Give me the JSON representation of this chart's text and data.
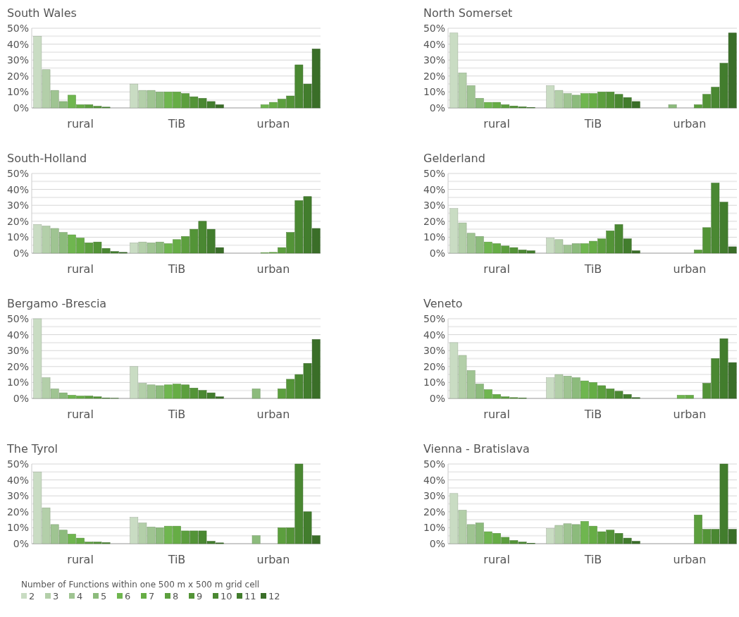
{
  "chart_data": [
    {
      "type": "bar",
      "title": "South Wales",
      "categories": [
        "rural",
        "TiB",
        "urban"
      ],
      "ylim": [
        0,
        50
      ],
      "yticks": [
        {
          "value": 0,
          "label": "0%"
        },
        {
          "value": 5,
          "label": null
        },
        {
          "value": 10,
          "label": "10%"
        },
        {
          "value": 15,
          "label": null
        },
        {
          "value": 20,
          "label": "20%"
        },
        {
          "value": 25,
          "label": null
        },
        {
          "value": 30,
          "label": "30%"
        },
        {
          "value": 35,
          "label": null
        },
        {
          "value": 40,
          "label": "40%"
        },
        {
          "value": 45,
          "label": null
        },
        {
          "value": 50,
          "label": "50%"
        }
      ],
      "grid": true,
      "series": [
        {
          "color": "#c9dcc3",
          "values": [
            45,
            15,
            0
          ]
        },
        {
          "color": "#b3cfa9",
          "values": [
            24,
            11,
            0
          ]
        },
        {
          "color": "#9fc492",
          "values": [
            11,
            11,
            0
          ]
        },
        {
          "color": "#8cbb7c",
          "values": [
            4,
            10,
            0
          ]
        },
        {
          "color": "#6fb64f",
          "values": [
            8,
            10,
            2
          ]
        },
        {
          "color": "#66ad45",
          "values": [
            2,
            10,
            3.5
          ]
        },
        {
          "color": "#5c9f3e",
          "values": [
            2,
            9,
            5.5
          ]
        },
        {
          "color": "#539437",
          "values": [
            1,
            7,
            7.5
          ]
        },
        {
          "color": "#4a8832",
          "values": [
            0.5,
            6,
            27
          ]
        },
        {
          "color": "#427d2d",
          "values": [
            0,
            4,
            15
          ]
        },
        {
          "color": "#3a6e28",
          "values": [
            0,
            2,
            37
          ]
        }
      ]
    },
    {
      "type": "bar",
      "title": "North Somerset",
      "categories": [
        "rural",
        "TiB",
        "urban"
      ],
      "ylim": [
        0,
        50
      ],
      "yticks": [
        {
          "value": 0,
          "label": "0%"
        },
        {
          "value": 5,
          "label": null
        },
        {
          "value": 10,
          "label": "10%"
        },
        {
          "value": 15,
          "label": null
        },
        {
          "value": 20,
          "label": "20%"
        },
        {
          "value": 25,
          "label": null
        },
        {
          "value": 30,
          "label": "30%"
        },
        {
          "value": 35,
          "label": null
        },
        {
          "value": 40,
          "label": "40%"
        },
        {
          "value": 45,
          "label": null
        },
        {
          "value": 50,
          "label": "50%"
        }
      ],
      "grid": true,
      "series": [
        {
          "color": "#c9dcc3",
          "values": [
            47,
            14,
            0
          ]
        },
        {
          "color": "#b3cfa9",
          "values": [
            22,
            11,
            0
          ]
        },
        {
          "color": "#9fc492",
          "values": [
            14,
            9,
            0
          ]
        },
        {
          "color": "#8cbb7c",
          "values": [
            6,
            8,
            2
          ]
        },
        {
          "color": "#6fb64f",
          "values": [
            3.5,
            9,
            0
          ]
        },
        {
          "color": "#66ad45",
          "values": [
            3.5,
            9,
            0
          ]
        },
        {
          "color": "#5c9f3e",
          "values": [
            2,
            10,
            2
          ]
        },
        {
          "color": "#539437",
          "values": [
            1.2,
            10,
            8.5
          ]
        },
        {
          "color": "#4a8832",
          "values": [
            0.7,
            8.5,
            13
          ]
        },
        {
          "color": "#427d2d",
          "values": [
            0.2,
            6.5,
            28
          ]
        },
        {
          "color": "#3a6e28",
          "values": [
            0,
            4,
            47
          ]
        }
      ]
    },
    {
      "type": "bar",
      "title": "South-Holland",
      "categories": [
        "rural",
        "TiB",
        "urban"
      ],
      "ylim": [
        0,
        50
      ],
      "yticks": [
        {
          "value": 0,
          "label": "0%"
        },
        {
          "value": 5,
          "label": null
        },
        {
          "value": 10,
          "label": "10%"
        },
        {
          "value": 15,
          "label": null
        },
        {
          "value": 20,
          "label": "20%"
        },
        {
          "value": 25,
          "label": null
        },
        {
          "value": 30,
          "label": "30%"
        },
        {
          "value": 35,
          "label": null
        },
        {
          "value": 40,
          "label": "40%"
        },
        {
          "value": 45,
          "label": null
        },
        {
          "value": 50,
          "label": "50%"
        }
      ],
      "grid": true,
      "series": [
        {
          "color": "#c9dcc3",
          "values": [
            18,
            6.5,
            null
          ]
        },
        {
          "color": "#b3cfa9",
          "values": [
            17,
            7,
            null
          ]
        },
        {
          "color": "#9fc492",
          "values": [
            15.5,
            6.5,
            null
          ]
        },
        {
          "color": "#8cbb7c",
          "values": [
            13,
            7,
            null
          ]
        },
        {
          "color": "#6fb64f",
          "values": [
            11.5,
            6,
            0.3
          ]
        },
        {
          "color": "#66ad45",
          "values": [
            9.5,
            8.5,
            0.5
          ]
        },
        {
          "color": "#5c9f3e",
          "values": [
            6.5,
            10.5,
            3.5
          ]
        },
        {
          "color": "#539437",
          "values": [
            7,
            15,
            13
          ]
        },
        {
          "color": "#4a8832",
          "values": [
            3,
            20,
            33
          ]
        },
        {
          "color": "#427d2d",
          "values": [
            1,
            15,
            35.5
          ]
        },
        {
          "color": "#3a6e28",
          "values": [
            0.5,
            3.5,
            15.5
          ]
        }
      ]
    },
    {
      "type": "bar",
      "title": "Gelderland",
      "categories": [
        "rural",
        "TiB",
        "urban"
      ],
      "ylim": [
        0,
        50
      ],
      "yticks": [
        {
          "value": 0,
          "label": "0%"
        },
        {
          "value": 5,
          "label": null
        },
        {
          "value": 10,
          "label": "10%"
        },
        {
          "value": 15,
          "label": null
        },
        {
          "value": 20,
          "label": "20%"
        },
        {
          "value": 25,
          "label": null
        },
        {
          "value": 30,
          "label": "30%"
        },
        {
          "value": 35,
          "label": null
        },
        {
          "value": 40,
          "label": "40%"
        },
        {
          "value": 45,
          "label": null
        },
        {
          "value": 50,
          "label": "50%"
        }
      ],
      "grid": true,
      "series": [
        {
          "color": "#c9dcc3",
          "values": [
            28,
            9.5,
            0
          ]
        },
        {
          "color": "#b3cfa9",
          "values": [
            19,
            8.5,
            0
          ]
        },
        {
          "color": "#9fc492",
          "values": [
            12.5,
            5,
            0
          ]
        },
        {
          "color": "#8cbb7c",
          "values": [
            10.5,
            6,
            0
          ]
        },
        {
          "color": "#6fb64f",
          "values": [
            7,
            6,
            0
          ]
        },
        {
          "color": "#66ad45",
          "values": [
            6,
            7.5,
            0
          ]
        },
        {
          "color": "#5c9f3e",
          "values": [
            4.5,
            9,
            2
          ]
        },
        {
          "color": "#539437",
          "values": [
            3.5,
            14,
            16
          ]
        },
        {
          "color": "#4a8832",
          "values": [
            2,
            18,
            44
          ]
        },
        {
          "color": "#427d2d",
          "values": [
            1.5,
            9,
            32
          ]
        },
        {
          "color": "#3a6e28",
          "values": [
            0,
            1.5,
            4
          ]
        }
      ]
    },
    {
      "type": "bar",
      "title": "Bergamo -Brescia",
      "categories": [
        "rural",
        "TiB",
        "urban"
      ],
      "ylim": [
        0,
        50
      ],
      "yticks": [
        {
          "value": 0,
          "label": "0%"
        },
        {
          "value": 5,
          "label": null
        },
        {
          "value": 10,
          "label": "10%"
        },
        {
          "value": 15,
          "label": null
        },
        {
          "value": 20,
          "label": "20%"
        },
        {
          "value": 25,
          "label": null
        },
        {
          "value": 30,
          "label": "30%"
        },
        {
          "value": 35,
          "label": null
        },
        {
          "value": 40,
          "label": "40%"
        },
        {
          "value": 45,
          "label": null
        },
        {
          "value": 50,
          "label": "50%"
        }
      ],
      "grid": true,
      "series": [
        {
          "color": "#c9dcc3",
          "values": [
            50,
            20,
            0
          ]
        },
        {
          "color": "#b3cfa9",
          "values": [
            13,
            9.5,
            0
          ]
        },
        {
          "color": "#9fc492",
          "values": [
            6,
            8.5,
            0
          ]
        },
        {
          "color": "#8cbb7c",
          "values": [
            3.5,
            8,
            6
          ]
        },
        {
          "color": "#6fb64f",
          "values": [
            2,
            8.5,
            0
          ]
        },
        {
          "color": "#66ad45",
          "values": [
            1.5,
            9,
            0
          ]
        },
        {
          "color": "#5c9f3e",
          "values": [
            1.5,
            8.5,
            6
          ]
        },
        {
          "color": "#539437",
          "values": [
            1,
            6.5,
            12
          ]
        },
        {
          "color": "#4a8832",
          "values": [
            0.3,
            5,
            15
          ]
        },
        {
          "color": "#427d2d",
          "values": [
            0.1,
            3.5,
            22
          ]
        },
        {
          "color": "#3a6e28",
          "values": [
            0,
            1,
            37
          ]
        }
      ]
    },
    {
      "type": "bar",
      "title": "Veneto",
      "categories": [
        "rural",
        "TiB",
        "urban"
      ],
      "ylim": [
        0,
        50
      ],
      "yticks": [
        {
          "value": 0,
          "label": "0%"
        },
        {
          "value": 5,
          "label": null
        },
        {
          "value": 10,
          "label": "10%"
        },
        {
          "value": 15,
          "label": null
        },
        {
          "value": 20,
          "label": "20%"
        },
        {
          "value": 25,
          "label": null
        },
        {
          "value": 30,
          "label": "30%"
        },
        {
          "value": 35,
          "label": null
        },
        {
          "value": 40,
          "label": "40%"
        },
        {
          "value": 45,
          "label": null
        },
        {
          "value": 50,
          "label": "50%"
        }
      ],
      "grid": true,
      "series": [
        {
          "color": "#c9dcc3",
          "values": [
            35,
            13,
            0
          ]
        },
        {
          "color": "#b3cfa9",
          "values": [
            27,
            15,
            0
          ]
        },
        {
          "color": "#9fc492",
          "values": [
            17.5,
            14,
            0
          ]
        },
        {
          "color": "#8cbb7c",
          "values": [
            9,
            13,
            0
          ]
        },
        {
          "color": "#6fb64f",
          "values": [
            5.5,
            11,
            2
          ]
        },
        {
          "color": "#66ad45",
          "values": [
            2.5,
            10,
            2
          ]
        },
        {
          "color": "#5c9f3e",
          "values": [
            1,
            8,
            0
          ]
        },
        {
          "color": "#539437",
          "values": [
            0.5,
            6,
            9.5
          ]
        },
        {
          "color": "#4a8832",
          "values": [
            0.3,
            4.5,
            25
          ]
        },
        {
          "color": "#427d2d",
          "values": [
            0,
            2.5,
            37.5
          ]
        },
        {
          "color": "#3a6e28",
          "values": [
            0,
            0.5,
            22.5
          ]
        }
      ]
    },
    {
      "type": "bar",
      "title": "The Tyrol",
      "categories": [
        "rural",
        "TiB",
        "urban"
      ],
      "ylim": [
        0,
        50
      ],
      "yticks": [
        {
          "value": 0,
          "label": "0%"
        },
        {
          "value": 5,
          "label": null
        },
        {
          "value": 10,
          "label": "10%"
        },
        {
          "value": 15,
          "label": null
        },
        {
          "value": 20,
          "label": "20%"
        },
        {
          "value": 25,
          "label": null
        },
        {
          "value": 30,
          "label": "30%"
        },
        {
          "value": 35,
          "label": null
        },
        {
          "value": 40,
          "label": "40%"
        },
        {
          "value": 45,
          "label": null
        },
        {
          "value": 50,
          "label": "50%"
        }
      ],
      "grid": true,
      "legend": "bottom",
      "legend_title": "Number of Functions within one 500 m x 500 m grid cell",
      "series": [
        {
          "name": "2",
          "color": "#c9dcc3",
          "values": [
            45,
            16.5,
            0
          ]
        },
        {
          "name": "3",
          "color": "#b3cfa9",
          "values": [
            22.5,
            13,
            0
          ]
        },
        {
          "name": "4",
          "color": "#9fc492",
          "values": [
            12,
            10.5,
            0
          ]
        },
        {
          "name": "5",
          "color": "#8cbb7c",
          "values": [
            8.5,
            10,
            5
          ]
        },
        {
          "name": "6",
          "color": "#6fb64f",
          "values": [
            6,
            11,
            0
          ]
        },
        {
          "name": "7",
          "color": "#66ad45",
          "values": [
            3.5,
            11,
            0
          ]
        },
        {
          "name": "8",
          "color": "#5c9f3e",
          "values": [
            1,
            8,
            10
          ]
        },
        {
          "name": "9",
          "color": "#539437",
          "values": [
            1,
            8,
            10
          ]
        },
        {
          "name": "10",
          "color": "#4a8832",
          "values": [
            0.7,
            8,
            50
          ]
        },
        {
          "name": "11",
          "color": "#427d2d",
          "values": [
            0,
            1.5,
            20
          ]
        },
        {
          "name": "12",
          "color": "#3a6e28",
          "values": [
            0,
            0.5,
            5
          ]
        }
      ]
    },
    {
      "type": "bar",
      "title": "Vienna - Bratislava",
      "categories": [
        "rural",
        "TiB",
        "urban"
      ],
      "ylim": [
        0,
        50
      ],
      "yticks": [
        {
          "value": 0,
          "label": "0%"
        },
        {
          "value": 5,
          "label": null
        },
        {
          "value": 10,
          "label": "10%"
        },
        {
          "value": 15,
          "label": null
        },
        {
          "value": 20,
          "label": "20%"
        },
        {
          "value": 25,
          "label": null
        },
        {
          "value": 30,
          "label": "30%"
        },
        {
          "value": 35,
          "label": null
        },
        {
          "value": 40,
          "label": "40%"
        },
        {
          "value": 45,
          "label": null
        },
        {
          "value": 50,
          "label": "50%"
        }
      ],
      "grid": true,
      "series": [
        {
          "color": "#c9dcc3",
          "values": [
            31.5,
            9.5,
            0
          ]
        },
        {
          "color": "#b3cfa9",
          "values": [
            21,
            11.5,
            0
          ]
        },
        {
          "color": "#9fc492",
          "values": [
            12,
            12.5,
            0
          ]
        },
        {
          "color": "#8cbb7c",
          "values": [
            13,
            12,
            0
          ]
        },
        {
          "color": "#6fb64f",
          "values": [
            7.5,
            14,
            0
          ]
        },
        {
          "color": "#66ad45",
          "values": [
            6.5,
            11,
            0
          ]
        },
        {
          "color": "#5c9f3e",
          "values": [
            4,
            7.5,
            18
          ]
        },
        {
          "color": "#539437",
          "values": [
            2,
            8.5,
            9
          ]
        },
        {
          "color": "#4a8832",
          "values": [
            1,
            6.5,
            9
          ]
        },
        {
          "color": "#427d2d",
          "values": [
            0.3,
            3.5,
            50
          ]
        },
        {
          "color": "#3a6e28",
          "values": [
            0,
            1.5,
            9
          ]
        }
      ]
    }
  ]
}
